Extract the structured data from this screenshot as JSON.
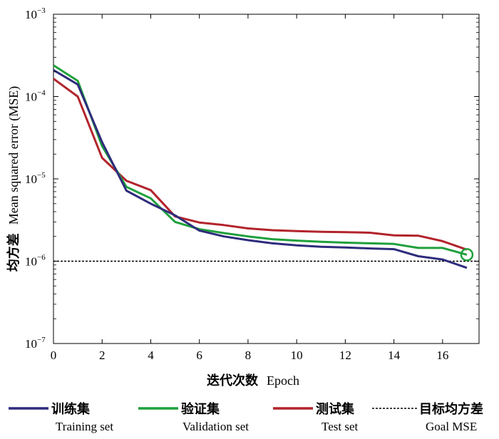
{
  "chart_data": {
    "type": "line",
    "xlabel_cn": "迭代次数",
    "xlabel_en": "Epoch",
    "ylabel_cn": "均方差",
    "ylabel_en": "Mean squared error (MSE)",
    "xlim": [
      0,
      17.5
    ],
    "ylim": [
      1e-07,
      0.001
    ],
    "yscale": "log",
    "grid": false,
    "xticks": [
      0,
      2,
      4,
      6,
      8,
      10,
      12,
      14,
      16
    ],
    "xtick_labels": [
      "0",
      "2",
      "4",
      "6",
      "8",
      "10",
      "12",
      "14",
      "16"
    ],
    "yticks": [
      1e-07,
      1e-06,
      1e-05,
      0.0001,
      0.001
    ],
    "ytick_base": "10",
    "ytick_exps": [
      "−7",
      "−6",
      "−5",
      "−4",
      "−3"
    ],
    "x": [
      0,
      1,
      2,
      3,
      4,
      5,
      6,
      7,
      8,
      9,
      10,
      11,
      12,
      13,
      14,
      15,
      16,
      17
    ],
    "series": [
      {
        "name_cn": "训练集",
        "name_en": "Training set",
        "color": "#2e2c7c",
        "values": [
          0.00021,
          0.00014,
          2.8e-05,
          7.2e-06,
          5e-06,
          3.6e-06,
          2.35e-06,
          2e-06,
          1.8e-06,
          1.65e-06,
          1.56e-06,
          1.5e-06,
          1.47e-06,
          1.43e-06,
          1.4e-06,
          1.15e-06,
          1.05e-06,
          8.3e-07
        ]
      },
      {
        "name_cn": "验证集",
        "name_en": "Validation set",
        "color": "#1fa03c",
        "values": [
          0.00024,
          0.000155,
          2.5e-05,
          8e-06,
          5.8e-06,
          3e-06,
          2.45e-06,
          2.2e-06,
          2e-06,
          1.85e-06,
          1.78e-06,
          1.72e-06,
          1.68e-06,
          1.65e-06,
          1.62e-06,
          1.45e-06,
          1.45e-06,
          1.2e-06
        ]
      },
      {
        "name_cn": "测试集",
        "name_en": "Test set",
        "color": "#b2242b",
        "values": [
          0.000165,
          0.0001,
          1.8e-05,
          9.5e-06,
          7.3e-06,
          3.5e-06,
          2.95e-06,
          2.75e-06,
          2.5e-06,
          2.38e-06,
          2.32e-06,
          2.28e-06,
          2.25e-06,
          2.22e-06,
          2.06e-06,
          2.04e-06,
          1.75e-06,
          1.38e-06
        ]
      }
    ],
    "goal": {
      "name_cn": "目标均方差",
      "name_en": "Goal MSE",
      "value": 1e-06,
      "color": "#000000"
    },
    "best_point": {
      "x": 17,
      "y": 1.2e-06,
      "color": "#1fa03c"
    },
    "legend_placement": "bottom"
  }
}
